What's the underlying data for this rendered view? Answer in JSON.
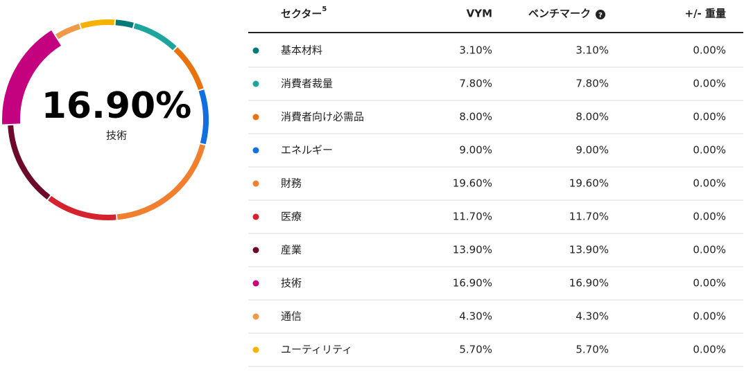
{
  "chart_data": {
    "type": "donut",
    "category_header": "セクター",
    "category_header_note": "5",
    "categories": [
      "基本材料",
      "消費者裁量",
      "消費者向け必需品",
      "エネルギー",
      "財務",
      "医療",
      "産業",
      "技術",
      "通信",
      "ユーティリティ"
    ],
    "colors": [
      "#007a78",
      "#1ea59b",
      "#e8730c",
      "#1170e0",
      "#f08030",
      "#d4222e",
      "#6b0a2a",
      "#c4027f",
      "#f0994a",
      "#f5b300"
    ],
    "highlight_index": 7,
    "series": [
      {
        "name": "VYM",
        "values": [
          3.1,
          7.8,
          8.0,
          9.0,
          19.6,
          11.7,
          13.9,
          16.9,
          4.3,
          5.7
        ],
        "value_labels": [
          "3.10%",
          "7.80%",
          "8.00%",
          "9.00%",
          "19.60%",
          "11.70%",
          "13.90%",
          "16.90%",
          "4.30%",
          "5.70%"
        ]
      },
      {
        "name": "ベンチマーク",
        "values": [
          3.1,
          7.8,
          8.0,
          9.0,
          19.6,
          11.7,
          13.9,
          16.9,
          4.3,
          5.7
        ],
        "value_labels": [
          "3.10%",
          "7.80%",
          "8.00%",
          "9.00%",
          "19.60%",
          "11.70%",
          "13.90%",
          "16.90%",
          "4.30%",
          "5.70%"
        ]
      },
      {
        "name": "+/- 重量",
        "values": [
          0,
          0,
          0,
          0,
          0,
          0,
          0,
          0,
          0,
          0
        ],
        "value_labels": [
          "0.00%",
          "0.00%",
          "0.00%",
          "0.00%",
          "0.00%",
          "0.00%",
          "0.00%",
          "0.00%",
          "0.00%",
          "0.00%"
        ]
      }
    ]
  }
}
